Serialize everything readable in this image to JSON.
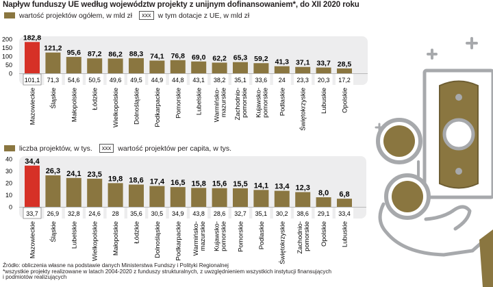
{
  "title": "Napływ funduszy UE według województw projekty z unijnym dofinansowaniem*, do XII 2020 roku",
  "legend1": {
    "series_label": "wartość projektów ogółem, w mld zł",
    "box_label": "xxx",
    "box_text": "w tym dotacje z UE, w mld zł"
  },
  "legend2": {
    "series_label": "liczba projektów, w tys.",
    "box_label": "xxx",
    "box_text": "wartość projektów per capita, w tys."
  },
  "source_lines": [
    "Źródło: obliczenia własne na podstawie danych Ministerstwa Fundszy i Polityki Regionalnej",
    "*wszystkie projekty realizowane w latach 2004-2020 z funduszy strukturalnych, z uwzględnieniem wszystkich instytucji finansujących",
    "i podmiotów realizujących"
  ],
  "colors": {
    "bar": "#8a7640",
    "highlight": "#d63127",
    "panel": "#ededee",
    "icon_gold": "#8a7640",
    "icon_gray": "#a7a9ac"
  },
  "chart_data": [
    {
      "type": "bar",
      "ylim": [
        0,
        200
      ],
      "yticks": [
        "200",
        "150",
        "100",
        "50",
        "0"
      ],
      "categories": [
        "Mazowieckie",
        "Śląskie",
        "Małopolskie",
        "Łódzkie",
        "Wielkopolskie",
        "Dolnośląskie",
        "Podkarpackie",
        "Pomorskie",
        "Lubelskie",
        "Warmińsko-mazurskie",
        "Zachodnio-pomorskie",
        "Kujawsko-pomorskie",
        "Podlaskie",
        "Świętokrzyskie",
        "Lubuskie",
        "Opolskie"
      ],
      "series": [
        {
          "name": "wartość projektów ogółem, w mld zł",
          "values": [
            182.8,
            121.2,
            95.6,
            87.2,
            86.2,
            88.3,
            74.1,
            76.8,
            69.0,
            62.2,
            65.3,
            59.2,
            41.3,
            37.1,
            33.7,
            28.5
          ],
          "labels": [
            "182,8",
            "121,2",
            "95,6",
            "87,2",
            "86,2",
            "88,3",
            "74,1",
            "76,8",
            "69,0",
            "62,2",
            "65,3",
            "59,2",
            "41,3",
            "37,1",
            "33,7",
            "28,5"
          ]
        },
        {
          "name": "w tym dotacje z UE, w mld zł",
          "values": [
            101.1,
            71.3,
            54.6,
            50.5,
            49.6,
            49.5,
            44.9,
            44.8,
            43.1,
            38.2,
            35.1,
            33.6,
            24,
            23.3,
            20.3,
            17.2
          ],
          "labels": [
            "101,1",
            "71,3",
            "54,6",
            "50,5",
            "49,6",
            "49,5",
            "44,9",
            "44,8",
            "43,1",
            "38,2",
            "35,1",
            "33,6",
            "24",
            "23,3",
            "20,3",
            "17,2"
          ]
        }
      ]
    },
    {
      "type": "bar",
      "ylim": [
        0,
        40
      ],
      "yticks": [
        "40",
        "30",
        "20",
        "10",
        "0"
      ],
      "categories": [
        "Mazowieckie",
        "Śląskie",
        "Lubelskie",
        "Wielkopolskie",
        "Małopolskie",
        "Łódzkie",
        "Dolnośląskie",
        "Podkarpackie",
        "Warmińsko-mazurskie",
        "Kujawsko-pomorskie",
        "Pomorskie",
        "Podlaskie",
        "Świętokrzyskie",
        "Zachodnio-pomorskie",
        "Opolskie",
        "Lubuskie"
      ],
      "series": [
        {
          "name": "liczba projektów, w tys.",
          "values": [
            34.4,
            26.3,
            24.1,
            23.5,
            19.8,
            18.6,
            17.4,
            16.5,
            15.8,
            15.6,
            15.5,
            14.1,
            13.4,
            12.3,
            8.0,
            6.8
          ],
          "labels": [
            "34,4",
            "26,3",
            "24,1",
            "23,5",
            "19,8",
            "18,6",
            "17,4",
            "16,5",
            "15,8",
            "15,6",
            "15,5",
            "14,1",
            "13,4",
            "12,3",
            "8,0",
            "6,8"
          ]
        },
        {
          "name": "wartość projektów per capita, w tys.",
          "values": [
            33.7,
            26.9,
            32.8,
            24.6,
            28,
            35.6,
            30.5,
            34.9,
            43.8,
            28.6,
            32.7,
            35.1,
            30.2,
            38.6,
            29.1,
            33.4
          ],
          "labels": [
            "33,7",
            "26,9",
            "32,8",
            "24,6",
            "28",
            "35,6",
            "30,5",
            "34,9",
            "43,8",
            "28,6",
            "32,7",
            "35,1",
            "30,2",
            "38,6",
            "29,1",
            "33,4"
          ]
        }
      ]
    }
  ]
}
